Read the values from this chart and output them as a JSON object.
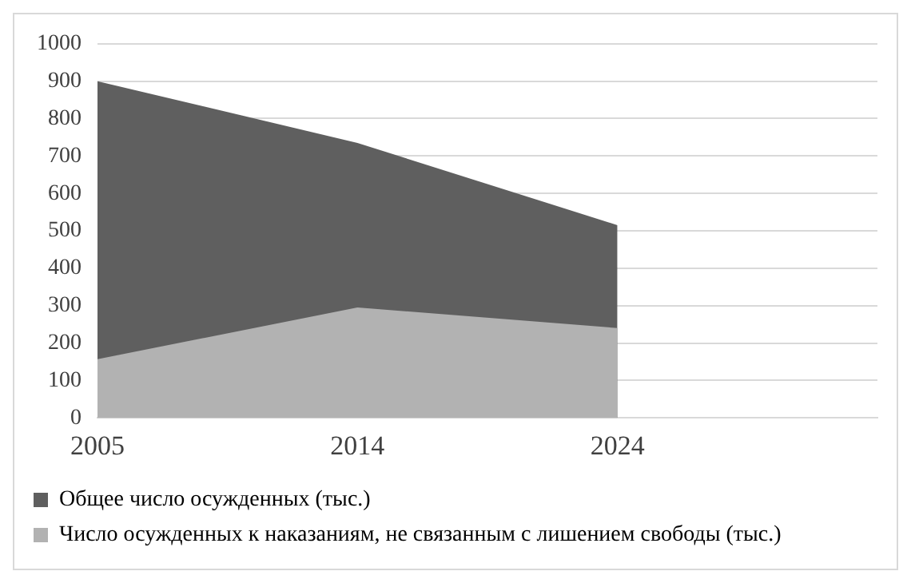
{
  "chart_data": {
    "type": "area",
    "categories": [
      "2005",
      "2014",
      "2024",
      null
    ],
    "series": [
      {
        "name": "Общее число осужденных (тыс.)",
        "color": "#5f5f5f",
        "values": [
          900,
          735,
          515,
          null
        ]
      },
      {
        "name": "Число осужденных к наказаниям, не связанным с лишением свободы (тыс.)",
        "color": "#b2b2b2",
        "values": [
          157,
          295,
          240,
          null
        ]
      }
    ],
    "ylim": [
      0,
      1000
    ],
    "yticks": [
      0,
      100,
      200,
      300,
      400,
      500,
      600,
      700,
      800,
      900,
      1000
    ],
    "grid": "y",
    "legend": "bottom"
  }
}
